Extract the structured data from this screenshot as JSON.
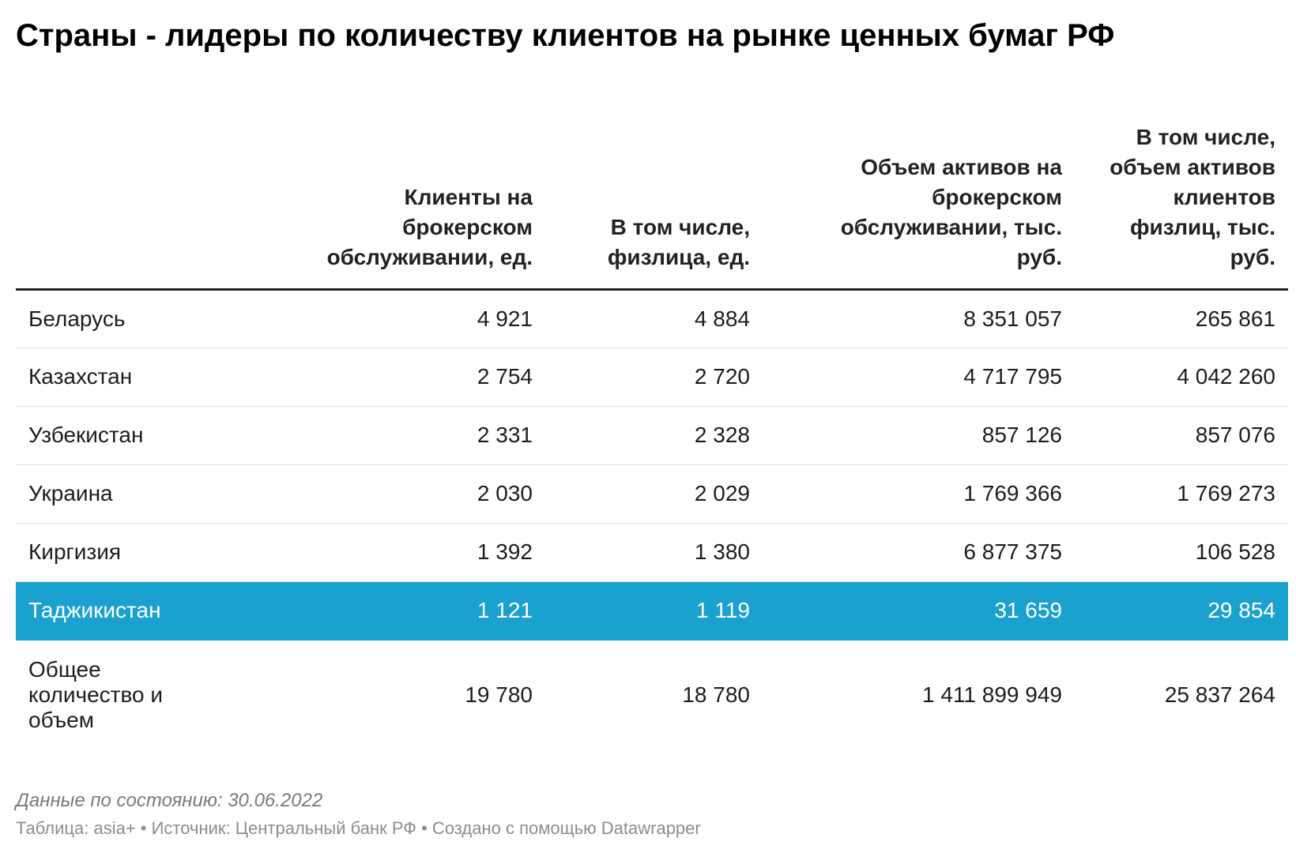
{
  "title": "Страны - лидеры по количеству клиентов на рынке ценных бумаг РФ",
  "chart_data": {
    "type": "table",
    "title": "Страны - лидеры по количеству клиентов на рынке ценных бумаг РФ",
    "columns": [
      "",
      "Клиенты на брокерском обслуживании, ед.",
      "В том числе, физлица, ед.",
      "Объем активов на брокерском обслуживании, тыс. руб.",
      "В том числе, объем активов клиентов физлиц, тыс. руб."
    ],
    "rows": [
      [
        "Беларусь",
        "4 921",
        "4 884",
        "8 351 057",
        "265 861"
      ],
      [
        "Казахстан",
        "2 754",
        "2 720",
        "4 717 795",
        "4 042 260"
      ],
      [
        "Узбекистан",
        "2 331",
        "2 328",
        "857 126",
        "857 076"
      ],
      [
        "Украина",
        "2 030",
        "2 029",
        "1 769 366",
        "1 769 273"
      ],
      [
        "Киргизия",
        "1 392",
        "1 380",
        "6 877 375",
        "106 528"
      ],
      [
        "Таджикистан",
        "1 121",
        "1 119",
        "31 659",
        "29 854"
      ]
    ],
    "highlighted_row": "Таджикистан",
    "highlight_color": "#1aa1cf",
    "total": [
      "Общее количество и объем",
      "19 780",
      "18 780",
      "1 411 899 949",
      "25 837 264"
    ]
  },
  "footer": {
    "note": "Данные по состоянию: 30.06.2022",
    "credits": "Таблица: asia+ • Источник: Центральный банк РФ • Создано с помощью Datawrapper"
  }
}
